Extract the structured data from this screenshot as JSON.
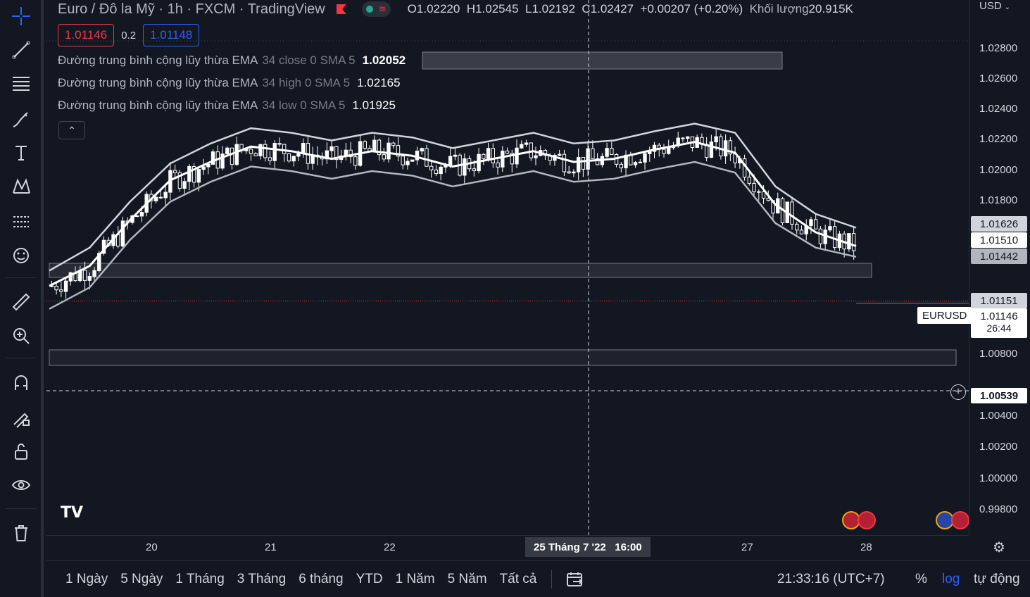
{
  "header": {
    "symbol_title": "Euro / Đô la Mỹ · 1h · FXCM · TradingView",
    "ohlc": {
      "o_label": "O",
      "o": "1.02220",
      "h_label": "H",
      "h": "1.02545",
      "l_label": "L",
      "l": "1.02192",
      "c_label": "C",
      "c": "1.02427",
      "change": "+0.00207 (+0.20%)",
      "volume_label": "Khối lượng",
      "volume": "20.915K"
    },
    "sell_price": "1.01146",
    "spread": "0.2",
    "buy_price": "1.01148"
  },
  "indicators": [
    {
      "name": "Đường trung bình cộng lũy thừa EMA",
      "params": "34 close 0 SMA 5",
      "value": "1.02052"
    },
    {
      "name": "Đường trung bình cộng lũy thừa EMA",
      "params": "34 high 0 SMA 5",
      "value": "1.02165"
    },
    {
      "name": "Đường trung bình cộng lũy thừa EMA",
      "params": "34 low 0 SMA 5",
      "value": "1.01925"
    }
  ],
  "price_axis": {
    "currency": "USD",
    "ticks": [
      "1.02800",
      "1.02600",
      "1.02400",
      "1.02200",
      "1.02000",
      "1.01800",
      "1.00800",
      "1.00400",
      "1.00200",
      "1.00000",
      "0.99800"
    ],
    "labels": {
      "ema_high": "1.01626",
      "ema_close": "1.01510",
      "ema_low": "1.01442",
      "last_price": "1.01151",
      "symbol": "EURUSD",
      "current_price": "1.01146",
      "countdown": "26:44",
      "crosshair": "1.00539"
    }
  },
  "time_axis": {
    "labels": [
      "20",
      "21",
      "22",
      "27",
      "28"
    ],
    "crosshair_label": "25 Tháng 7 '22   16:00"
  },
  "bottom_bar": {
    "ranges": [
      "1 Ngày",
      "5 Ngày",
      "1 Tháng",
      "3 Tháng",
      "6 tháng",
      "YTD",
      "1 Năm",
      "5 Năm",
      "Tất cả"
    ],
    "clock": "21:33:16 (UTC+7)",
    "percent": "%",
    "log": "log",
    "auto": "tự động"
  },
  "colors": {
    "background": "#131722",
    "candle": "#ffffff",
    "sell": "#f23645",
    "buy": "#2962ff",
    "grid": "#2a2e39"
  },
  "chart_data": {
    "type": "candlestick",
    "symbol": "EURUSD",
    "interval": "1h",
    "ylim": [
      0.997,
      1.031
    ],
    "y_ticks": [
      1.028,
      1.026,
      1.024,
      1.022,
      1.02,
      1.018,
      1.008,
      1.004,
      1.002,
      1.0,
      0.998
    ],
    "series": [
      {
        "name": "EMA 34 high",
        "values": [
          1.0135,
          1.015,
          1.018,
          1.0205,
          1.0218,
          1.0228,
          1.0225,
          1.022,
          1.0225,
          1.0222,
          1.0215,
          1.022,
          1.0225,
          1.0218,
          1.022,
          1.0226,
          1.0231,
          1.0225,
          1.019,
          1.0172,
          1.0163
        ]
      },
      {
        "name": "EMA 34 close",
        "values": [
          1.0125,
          1.0138,
          1.0168,
          1.0194,
          1.0206,
          1.0216,
          1.0213,
          1.0208,
          1.0213,
          1.021,
          1.0203,
          1.0208,
          1.0213,
          1.0206,
          1.0208,
          1.0214,
          1.0219,
          1.0212,
          1.0178,
          1.016,
          1.0151
        ]
      },
      {
        "name": "EMA 34 low",
        "values": [
          1.011,
          1.0124,
          1.0155,
          1.018,
          1.0193,
          1.0203,
          1.02,
          1.0195,
          1.02,
          1.0197,
          1.019,
          1.0195,
          1.02,
          1.0193,
          1.0195,
          1.0201,
          1.0206,
          1.0199,
          1.0166,
          1.015,
          1.0144
        ]
      }
    ]
  }
}
